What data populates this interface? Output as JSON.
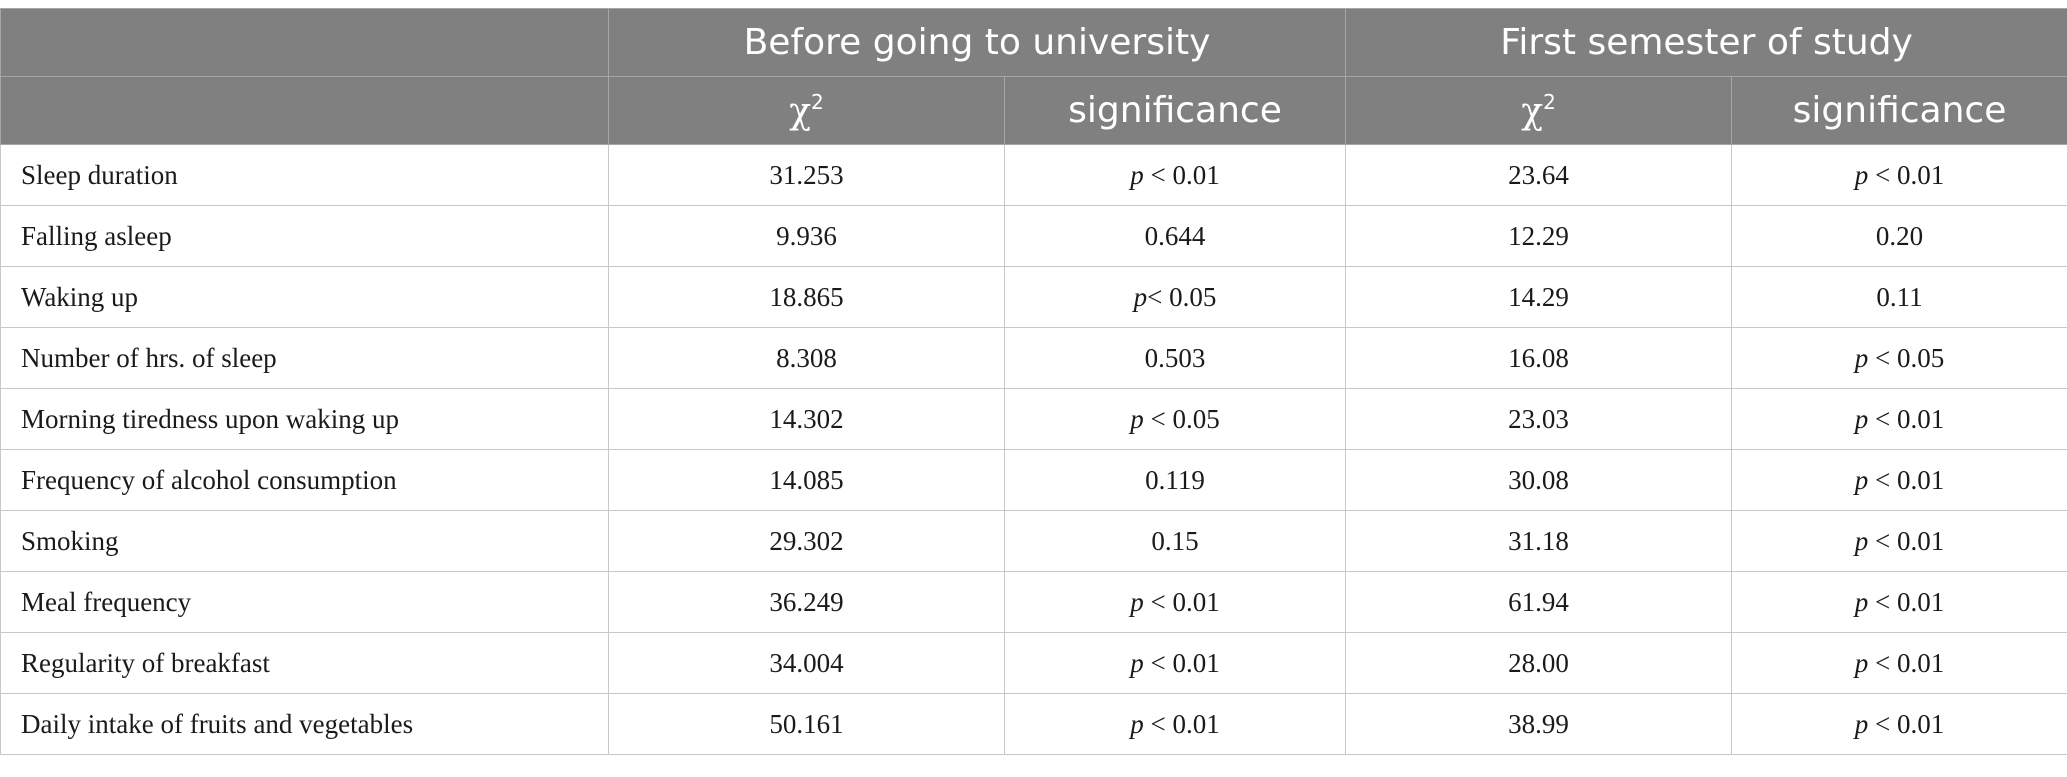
{
  "header": {
    "group_before": "Before going to university",
    "group_first": "First semester of study",
    "chi_symbol": "χ",
    "chi_exp": "2",
    "significance": "significance"
  },
  "rows": [
    {
      "label": "Sleep duration",
      "before_chi": "31.253",
      "before_sig_p": "p",
      "before_sig": " < 0.01",
      "first_chi": "23.64",
      "first_sig_p": "p",
      "first_sig": " < 0.01"
    },
    {
      "label": "Falling asleep",
      "before_chi": "9.936",
      "before_sig_p": "",
      "before_sig": "0.644",
      "first_chi": "12.29",
      "first_sig_p": "",
      "first_sig": "0.20"
    },
    {
      "label": "Waking up",
      "before_chi": "18.865",
      "before_sig_p": "p",
      "before_sig": "< 0.05",
      "first_chi": "14.29",
      "first_sig_p": "",
      "first_sig": "0.11"
    },
    {
      "label": "Number of hrs. of sleep",
      "before_chi": "8.308",
      "before_sig_p": "",
      "before_sig": "0.503",
      "first_chi": "16.08",
      "first_sig_p": "p",
      "first_sig": " < 0.05"
    },
    {
      "label": "Morning tiredness upon waking up",
      "before_chi": "14.302",
      "before_sig_p": "p",
      "before_sig": " < 0.05",
      "first_chi": "23.03",
      "first_sig_p": "p",
      "first_sig": " < 0.01"
    },
    {
      "label": "Frequency of alcohol consumption",
      "before_chi": "14.085",
      "before_sig_p": "",
      "before_sig": "0.119",
      "first_chi": "30.08",
      "first_sig_p": "p",
      "first_sig": " < 0.01"
    },
    {
      "label": "Smoking",
      "before_chi": "29.302",
      "before_sig_p": "",
      "before_sig": "0.15",
      "first_chi": "31.18",
      "first_sig_p": "p",
      "first_sig": " < 0.01"
    },
    {
      "label": "Meal frequency",
      "before_chi": "36.249",
      "before_sig_p": "p",
      "before_sig": " < 0.01",
      "first_chi": "61.94",
      "first_sig_p": "p",
      "first_sig": " < 0.01"
    },
    {
      "label": "Regularity of breakfast",
      "before_chi": "34.004",
      "before_sig_p": "p",
      "before_sig": " < 0.01",
      "first_chi": "28.00",
      "first_sig_p": "p",
      "first_sig": " < 0.01"
    },
    {
      "label": "Daily intake of fruits and vegetables",
      "before_chi": "50.161",
      "before_sig_p": "p",
      "before_sig": " < 0.01",
      "first_chi": "38.99",
      "first_sig_p": "p",
      "first_sig": " < 0.01"
    }
  ]
}
